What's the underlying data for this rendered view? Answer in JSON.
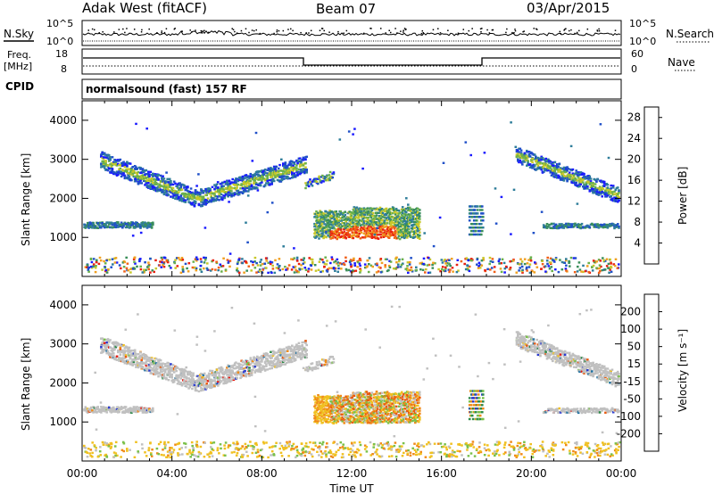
{
  "header": {
    "station": "Adak West (fitACF)",
    "beam": "Beam 07",
    "date": "03/Apr/2015"
  },
  "strip_labels": {
    "nsky": "N.Sky",
    "nsearch": "N.Search",
    "freq_line1": "Freq.",
    "freq_line2": "[MHz]",
    "nave": "Nave",
    "cpid": "CPID",
    "nsky_ticks": [
      "10^5",
      "10^0"
    ],
    "nsearch_ticks": [
      "10^5",
      "10^0"
    ],
    "freq_ticks": [
      "18",
      "8"
    ],
    "nave_ticks": [
      "60",
      "0"
    ]
  },
  "program": "normalsound (fast) 157 RF",
  "chart_data": [
    {
      "type": "heatmap",
      "panel": "power",
      "ylabel": "Slant Range [km]",
      "ylim": [
        0,
        4500
      ],
      "yticks": [
        "1000",
        "2000",
        "3000",
        "4000"
      ],
      "xticks": [
        "00:00",
        "04:00",
        "08:00",
        "12:00",
        "16:00",
        "20:00",
        "00:00"
      ],
      "xlim_hours": [
        0,
        24
      ],
      "colorbar": {
        "label": "Power [dB]",
        "ticks": [
          "4",
          "8",
          "12",
          "16",
          "20",
          "24",
          "28"
        ],
        "range": [
          0,
          30
        ]
      }
    },
    {
      "type": "heatmap",
      "panel": "velocity",
      "ylabel": "Slant Range [km]",
      "xlabel": "Time UT",
      "ylim": [
        0,
        4500
      ],
      "yticks": [
        "1000",
        "2000",
        "3000",
        "4000"
      ],
      "xticks": [
        "00:00",
        "04:00",
        "08:00",
        "12:00",
        "16:00",
        "20:00",
        "00:00"
      ],
      "xlim_hours": [
        0,
        24
      ],
      "colorbar": {
        "label": "Velocity [m s⁻¹]",
        "ticks": [
          "200",
          "100",
          "50",
          "15",
          "-15",
          "-50",
          "-100",
          "-200"
        ]
      }
    }
  ],
  "colors": {
    "power": [
      "#1a1aff",
      "#1f4fc8",
      "#2e7d9a",
      "#3a8f5a",
      "#6ab04c",
      "#c8c82a",
      "#f0a020",
      "#f06018",
      "#e82010"
    ],
    "velocity": [
      "#2a3ad0",
      "#1e6fa0",
      "#2e8a4a",
      "#7ac04a",
      "#c0c0c0",
      "#c0c0c0",
      "#f0c020",
      "#f08a18",
      "#e85a10",
      "#e81a10"
    ]
  }
}
